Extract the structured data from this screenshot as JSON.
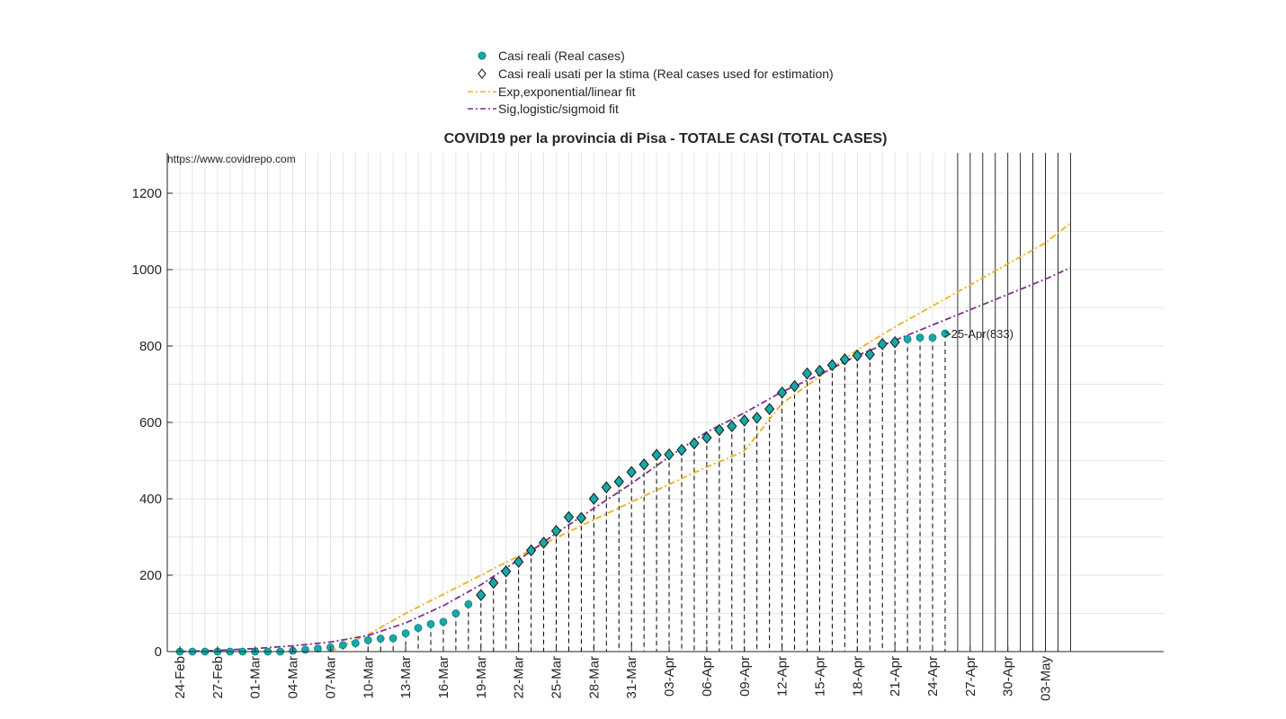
{
  "chart_data": {
    "type": "scatter",
    "title": "COVID19 per la provincia di Pisa - TOTALE CASI (TOTAL CASES)",
    "source_text": "https://www.covidrepo.com",
    "annotation": ">25-Apr(833)",
    "xlabel": "",
    "ylabel": "",
    "ylim": [
      0,
      1300
    ],
    "y_ticks": [
      0,
      200,
      400,
      600,
      800,
      1000,
      1200
    ],
    "x_start_date": "2020-02-24",
    "x_end_date": "2020-05-05",
    "x_tick_labels": [
      "24-Feb",
      "27-Feb",
      "01-Mar",
      "04-Mar",
      "07-Mar",
      "10-Mar",
      "13-Mar",
      "16-Mar",
      "19-Mar",
      "22-Mar",
      "25-Mar",
      "28-Mar",
      "31-Mar",
      "03-Apr",
      "06-Apr",
      "09-Apr",
      "12-Apr",
      "15-Apr",
      "18-Apr",
      "21-Apr",
      "24-Apr",
      "27-Apr",
      "30-Apr",
      "03-May"
    ],
    "x_tick_dates": [
      "2020-02-24",
      "2020-02-27",
      "2020-03-01",
      "2020-03-04",
      "2020-03-07",
      "2020-03-10",
      "2020-03-13",
      "2020-03-16",
      "2020-03-19",
      "2020-03-22",
      "2020-03-25",
      "2020-03-28",
      "2020-03-31",
      "2020-04-03",
      "2020-04-06",
      "2020-04-09",
      "2020-04-12",
      "2020-04-15",
      "2020-04-18",
      "2020-04-21",
      "2020-04-24",
      "2020-04-27",
      "2020-04-30",
      "2020-05-03"
    ],
    "grid": true,
    "legend_position": "top-center",
    "series": [
      {
        "name": "Casi reali (Real cases)",
        "marker": "circle",
        "color": "#17a9a9",
        "x": [
          "2020-02-24",
          "2020-02-25",
          "2020-02-26",
          "2020-02-27",
          "2020-02-28",
          "2020-02-29",
          "2020-03-01",
          "2020-03-02",
          "2020-03-03",
          "2020-03-04",
          "2020-03-05",
          "2020-03-06",
          "2020-03-07",
          "2020-03-08",
          "2020-03-09",
          "2020-03-10",
          "2020-03-11",
          "2020-03-12",
          "2020-03-13",
          "2020-03-14",
          "2020-03-15",
          "2020-03-16",
          "2020-03-17",
          "2020-03-18",
          "2020-03-19",
          "2020-03-20",
          "2020-03-21",
          "2020-03-22",
          "2020-03-23",
          "2020-03-24",
          "2020-03-25",
          "2020-03-26",
          "2020-03-27",
          "2020-03-28",
          "2020-03-29",
          "2020-03-30",
          "2020-03-31",
          "2020-04-01",
          "2020-04-02",
          "2020-04-03",
          "2020-04-04",
          "2020-04-05",
          "2020-04-06",
          "2020-04-07",
          "2020-04-08",
          "2020-04-09",
          "2020-04-10",
          "2020-04-11",
          "2020-04-12",
          "2020-04-13",
          "2020-04-14",
          "2020-04-15",
          "2020-04-16",
          "2020-04-17",
          "2020-04-18",
          "2020-04-19",
          "2020-04-20",
          "2020-04-21",
          "2020-04-22",
          "2020-04-23",
          "2020-04-24",
          "2020-04-25"
        ],
        "y": [
          0,
          0,
          0,
          0,
          0,
          0,
          0,
          0,
          0,
          2,
          5,
          8,
          11,
          17,
          22,
          30,
          34,
          35,
          48,
          62,
          72,
          78,
          100,
          124,
          148,
          180,
          210,
          235,
          265,
          285,
          316,
          352,
          350,
          400,
          430,
          445,
          470,
          490,
          515,
          516,
          528,
          545,
          560,
          580,
          590,
          605,
          612,
          635,
          678,
          695,
          728,
          735,
          750,
          765,
          775,
          778,
          805,
          810,
          818,
          822,
          822,
          833
        ]
      },
      {
        "name": "Casi reali usati per la stima (Real cases used for estimation)",
        "marker": "diamond",
        "color": "#000000",
        "x_from": "2020-03-19",
        "x_to": "2020-04-21"
      },
      {
        "name": "Exp,exponential/linear fit",
        "line": "dash-dot",
        "color": "#edb120",
        "x": [
          "2020-03-07",
          "2020-03-10",
          "2020-03-13",
          "2020-03-16",
          "2020-03-19",
          "2020-03-22",
          "2020-03-25",
          "2020-03-28",
          "2020-03-31",
          "2020-04-03",
          "2020-04-06",
          "2020-04-09",
          "2020-04-12",
          "2020-04-15",
          "2020-04-18",
          "2020-04-21",
          "2020-04-24",
          "2020-04-27",
          "2020-04-30",
          "2020-05-03",
          "2020-05-05"
        ],
        "y": [
          0,
          45,
          100,
          150,
          200,
          250,
          298,
          345,
          392,
          438,
          483,
          525,
          650,
          720,
          790,
          850,
          905,
          960,
          1015,
          1070,
          1122
        ]
      },
      {
        "name": "Sig,logistic/sigmoid fit",
        "line": "dash-dot",
        "color": "#7e2f8e",
        "x": [
          "2020-02-24",
          "2020-02-27",
          "2020-03-01",
          "2020-03-04",
          "2020-03-07",
          "2020-03-10",
          "2020-03-13",
          "2020-03-16",
          "2020-03-19",
          "2020-03-22",
          "2020-03-25",
          "2020-03-28",
          "2020-03-31",
          "2020-04-03",
          "2020-04-06",
          "2020-04-09",
          "2020-04-12",
          "2020-04-15",
          "2020-04-18",
          "2020-04-21",
          "2020-04-24",
          "2020-04-27",
          "2020-04-30",
          "2020-05-03",
          "2020-05-05"
        ],
        "y": [
          0,
          3,
          8,
          15,
          25,
          42,
          75,
          120,
          175,
          240,
          310,
          375,
          440,
          510,
          575,
          625,
          680,
          725,
          775,
          815,
          855,
          895,
          935,
          975,
          1005
        ]
      }
    ]
  },
  "colors": {
    "real_cases": "#17a9a9",
    "exp_fit": "#edb120",
    "sig_fit": "#7e2f8e",
    "axis": "#262626",
    "grid": "#dedede"
  }
}
